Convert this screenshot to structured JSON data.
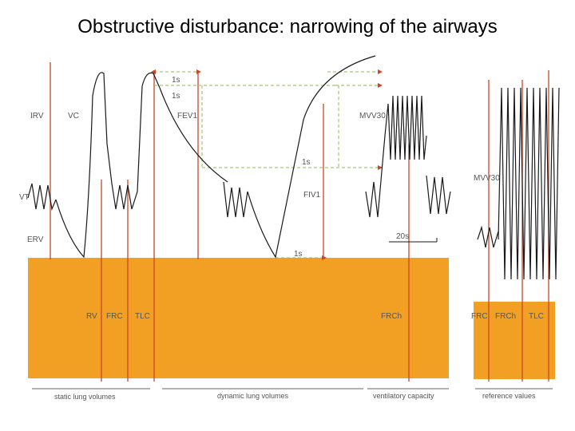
{
  "title": "Obstructive disturbance: narrowing of the airways",
  "labels": {
    "irv": "IRV",
    "vc": "VC",
    "vt": "VT",
    "erv": "ERV",
    "fev1": "FEV1",
    "fiv1": "FIV1",
    "mvv30_a": "MVV30",
    "mvv30_b": "MVV30",
    "one_s_a": "1s",
    "one_s_b": "1s",
    "one_s_c": "1s",
    "one_s_d": "1s",
    "twenty_s": "20s",
    "rv": "RV",
    "frc_a": "FRC",
    "tlc_a": "TLC",
    "frch_a": "FRCh",
    "frc_b": "FRC",
    "frch_b": "FRCh",
    "tlc_b": "TLC"
  },
  "sections": {
    "static": "static lung volumes",
    "dynamic": "dynamic lung volumes",
    "ventilatory": "ventilatory capacity",
    "reference": "reference values"
  },
  "colors": {
    "orange": "#f1a024",
    "red_line": "#c9462a",
    "green_dash": "#8dbb52",
    "trace": "#1a1a1a",
    "label_text": "#555555"
  }
}
